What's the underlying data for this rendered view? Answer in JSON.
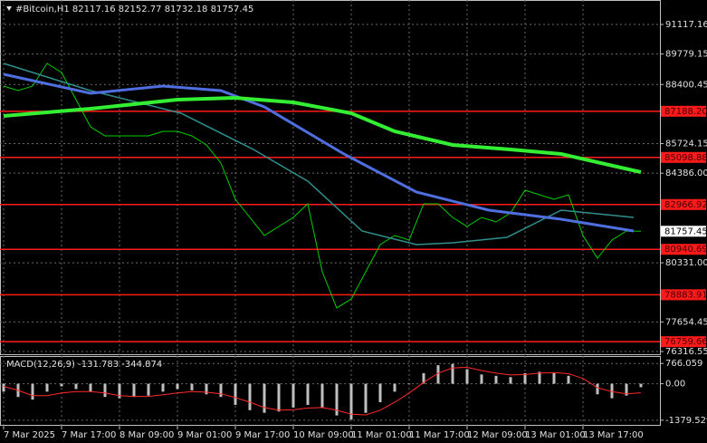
{
  "chart_data": [
    {
      "type": "line",
      "title": "#Bitcoin,H1  82117.16 82152.77 81732.18 81757.45",
      "xlim": [
        -1,
        181.25
      ],
      "xticks": [
        {
          "value": 0,
          "label": "7 Mar 2025"
        },
        {
          "value": 16,
          "label": "7 Mar 17:00"
        },
        {
          "value": 32,
          "label": "8 Mar 09:00"
        },
        {
          "value": 48,
          "label": "9 Mar 01:00"
        },
        {
          "value": 64,
          "label": "9 Mar 17:00"
        },
        {
          "value": 80,
          "label": "10 Mar 09:00"
        },
        {
          "value": 96,
          "label": "11 Mar 01:00"
        },
        {
          "value": 112,
          "label": "11 Mar 17:00"
        },
        {
          "value": 128,
          "label": "12 Mar 09:00"
        },
        {
          "value": 144,
          "label": "13 Mar 01:00"
        },
        {
          "value": 160,
          "label": "13 Mar 17:00"
        }
      ],
      "ylim": [
        76152,
        92224
      ],
      "yticks": [
        91117.16,
        89779.15,
        88400.45,
        85724.15,
        {
          "value": 84386,
          "label": "84386.00"
        },
        {
          "value": 80331,
          "label": "80331.00"
        },
        77654.45,
        76316.55
      ],
      "levels": [
        {
          "value": 87188.2,
          "label": "87188.20"
        },
        85098.88,
        82966.92,
        80940.69,
        78883.91,
        76759.66
      ],
      "level_color": "#ff1a1a",
      "last_price": 81757.45,
      "grid": true,
      "series": [
        {
          "color": "#00d000",
          "x": [
            0,
            4,
            8,
            12,
            16,
            20,
            24,
            28,
            32,
            36,
            40,
            44,
            48,
            52,
            56,
            60,
            64,
            68,
            72,
            76,
            80,
            84,
            88,
            92,
            96,
            100,
            104,
            108,
            112,
            116,
            120,
            124,
            128,
            132,
            136,
            140,
            144,
            148,
            152,
            156,
            160,
            164,
            168,
            172,
            176
          ],
          "values": [
            88329,
            88124,
            88329,
            89354,
            88944,
            87714,
            86484,
            86074,
            86074,
            86074,
            86074,
            86279,
            86279,
            86074,
            85664,
            84844,
            83204,
            82384,
            81564,
            81974,
            82384,
            82999,
            79924,
            78284,
            78694,
            79924,
            81154,
            81564,
            81359,
            82999,
            82999,
            82384,
            81974,
            82384,
            82179,
            82589,
            83614,
            83409,
            83204,
            83409,
            81564,
            80539,
            81359,
            81769,
            81757.45
          ]
        },
        {
          "color": "#2f8f8f",
          "x": [
            0,
            24,
            49,
            69,
            84,
            99,
            114,
            124,
            139,
            154,
            174
          ],
          "values": [
            89354,
            88124,
            87099,
            85459,
            84024,
            81769,
            81154,
            81236,
            81482,
            82712,
            82384
          ]
        },
        {
          "color": "#4f6fe0",
          "x": [
            0,
            24,
            44,
            60,
            72,
            94,
            114,
            134,
            154,
            174
          ],
          "values": [
            88862,
            87999,
            88329,
            88124,
            87386,
            85254,
            83532,
            82712,
            82302,
            81769
          ]
        },
        {
          "color": "#33ee33",
          "x": [
            0,
            24,
            48,
            64,
            80,
            96,
            108,
            124,
            140,
            154,
            176
          ],
          "values": [
            86976,
            87304,
            87714,
            87796,
            87591,
            87099,
            86279,
            85664,
            85459,
            85254,
            84434
          ]
        }
      ]
    },
    {
      "type": "bar",
      "title": "MACD(12,26,9) -131.783 -344.874",
      "xlim": [
        -1,
        181.25
      ],
      "ylim": [
        -1590,
        1047
      ],
      "yticks": [
        766.059,
        {
          "value": 0,
          "label": "0.00"
        },
        -1379.529
      ],
      "x": [
        0,
        4,
        8,
        12,
        16,
        20,
        24,
        28,
        32,
        36,
        40,
        44,
        48,
        52,
        56,
        60,
        64,
        68,
        72,
        76,
        80,
        84,
        88,
        92,
        96,
        100,
        104,
        108,
        112,
        116,
        120,
        124,
        128,
        132,
        136,
        140,
        144,
        148,
        152,
        156,
        160,
        164,
        168,
        172,
        176
      ],
      "series": [
        {
          "type": "bar",
          "color": "#c0c0c0",
          "values": [
            -300,
            -500,
            -600,
            -300,
            -100,
            -200,
            -300,
            -500,
            -550,
            -500,
            -450,
            -300,
            -200,
            -250,
            -400,
            -500,
            -800,
            -1000,
            -1100,
            -1050,
            -900,
            -800,
            -900,
            -1200,
            -1350,
            -1100,
            -700,
            -300,
            0,
            400,
            700,
            750,
            550,
            350,
            300,
            250,
            400,
            450,
            400,
            300,
            0,
            -400,
            -550,
            -450,
            -131.783
          ]
        },
        {
          "type": "line",
          "color": "#ff2a2a",
          "values": [
            -100,
            -250,
            -450,
            -450,
            -350,
            -300,
            -300,
            -350,
            -450,
            -480,
            -480,
            -420,
            -350,
            -300,
            -320,
            -380,
            -520,
            -700,
            -900,
            -1000,
            -980,
            -920,
            -900,
            -1000,
            -1150,
            -1180,
            -1000,
            -700,
            -350,
            50,
            400,
            600,
            620,
            500,
            400,
            330,
            350,
            400,
            420,
            380,
            200,
            -150,
            -300,
            -380,
            -344.874
          ]
        }
      ]
    }
  ]
}
